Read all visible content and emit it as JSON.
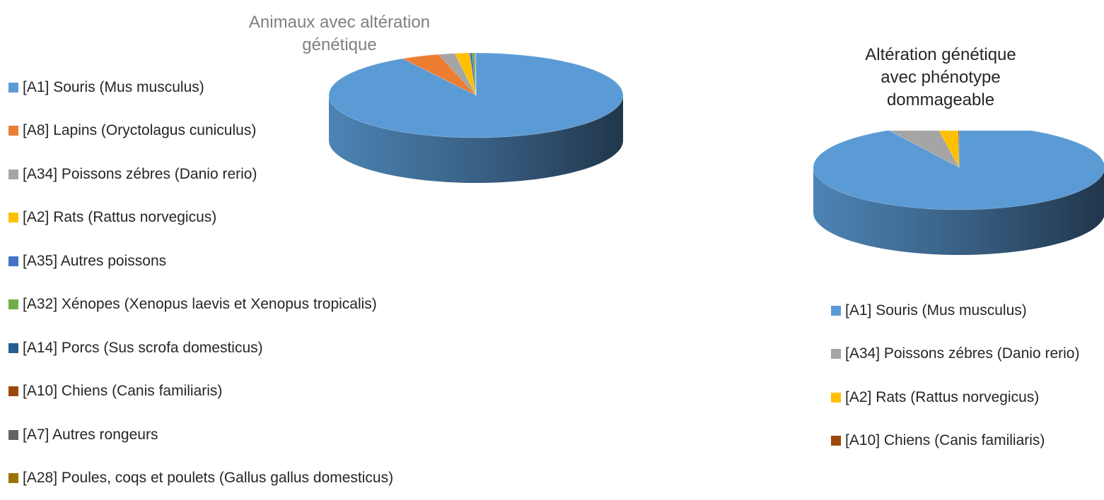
{
  "colors": {
    "souris": "#5B9BD5",
    "lapins": "#ED7D31",
    "poissons_zebres": "#A5A5A5",
    "rats": "#FFC000",
    "autres_poissons": "#4472C4",
    "xenopes": "#70AD47",
    "porcs": "#255E91",
    "chiens": "#9E480E",
    "autres_rongeurs": "#636363",
    "poules": "#997300"
  },
  "chart_data": [
    {
      "type": "pie",
      "title": "Animaux avec altération génétique",
      "title_lines": [
        "Animaux avec altération",
        "génétique"
      ],
      "legend_position": "left",
      "style": "3d",
      "categories": [
        "[A1] Souris (Mus musculus)",
        "[A8] Lapins (Oryctolagus cuniculus)",
        "[A34] Poissons zébres (Danio rerio)",
        "[A2] Rats (Rattus norvegicus)",
        "[A35] Autres poissons",
        "[A32] Xénopes (Xenopus laevis et Xenopus tropicalis)",
        "[A14] Porcs (Sus scrofa domesticus)",
        "[A10] Chiens (Canis familiaris)",
        "[A7] Autres rongeurs",
        "[A28] Poules, coqs et poulets (Gallus gallus domesticus)"
      ],
      "values": [
        91.7,
        4.2,
        1.8,
        1.6,
        0.3,
        0.25,
        0.05,
        0.04,
        0.03,
        0.03
      ],
      "colors": [
        "#5B9BD5",
        "#ED7D31",
        "#A5A5A5",
        "#FFC000",
        "#4472C4",
        "#70AD47",
        "#255E91",
        "#9E480E",
        "#636363",
        "#997300"
      ]
    },
    {
      "type": "pie",
      "title": "Altération génétique avec phénotype dommageable",
      "title_lines": [
        "Altération génétique",
        "avec phénotype",
        "dommageable"
      ],
      "legend_position": "bottom",
      "style": "3d",
      "categories": [
        "[A1] Souris (Mus musculus)",
        "[A34] Poissons zébres (Danio rerio)",
        "[A2] Rats (Rattus norvegicus)",
        "[A10] Chiens (Canis familiaris)"
      ],
      "values": [
        92.0,
        5.5,
        2.4,
        0.1
      ],
      "colors": [
        "#5B9BD5",
        "#A5A5A5",
        "#FFC000",
        "#9E480E"
      ]
    }
  ]
}
